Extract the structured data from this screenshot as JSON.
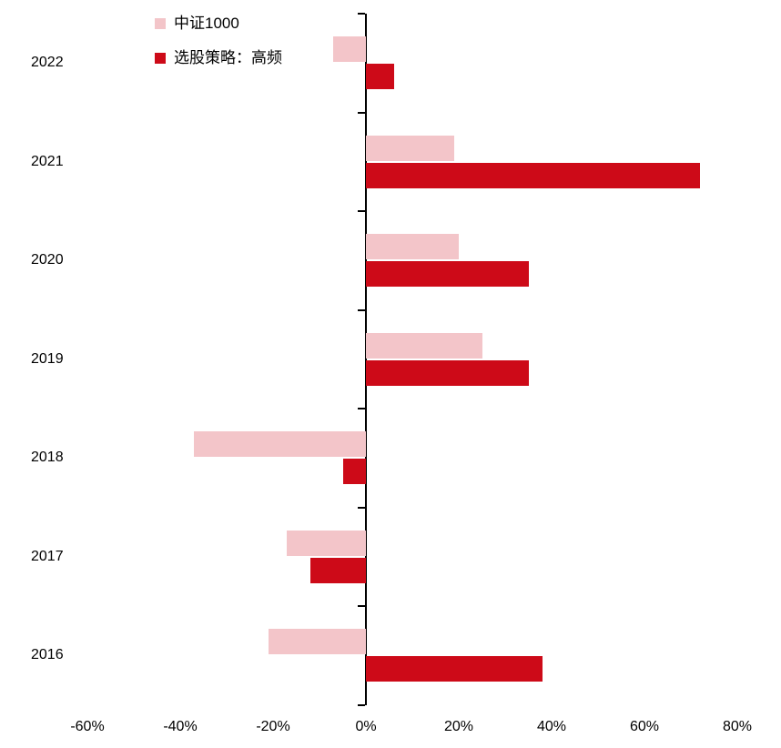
{
  "chart_data": {
    "type": "bar",
    "orientation": "horizontal",
    "title": "",
    "xlabel": "",
    "ylabel": "",
    "grid": false,
    "legend_position": "top-left",
    "categories": [
      "2022",
      "2021",
      "2020",
      "2019",
      "2018",
      "2017",
      "2016"
    ],
    "series": [
      {
        "name": "中证1000",
        "color": "#f3c5c9",
        "values": [
          -7,
          19,
          20,
          25,
          -37,
          -17,
          -21
        ]
      },
      {
        "name": "选股策略：高频",
        "color": "#cd0a18",
        "values": [
          6,
          72,
          35,
          35,
          -5,
          -12,
          38
        ]
      }
    ],
    "xlim": [
      -60,
      80
    ],
    "x_tick_values": [
      -60,
      -40,
      -20,
      0,
      20,
      40,
      60,
      80
    ],
    "x_ticks": [
      "-60%",
      "-40%",
      "-20%",
      "0%",
      "20%",
      "40%",
      "60%",
      "80%"
    ]
  }
}
